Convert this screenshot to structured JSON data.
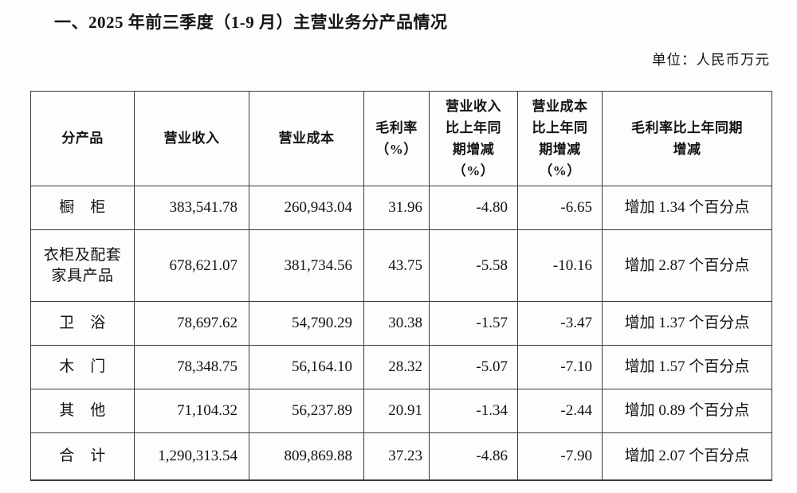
{
  "page": {
    "title": "一、2025 年前三季度（1-9 月）主营业务分产品情况",
    "unit_label": "单位：人民币万元"
  },
  "table": {
    "columns": [
      {
        "key": "product",
        "label": "分产品"
      },
      {
        "key": "revenue",
        "label": "营业收入"
      },
      {
        "key": "cost",
        "label": "营业成本"
      },
      {
        "key": "gross_margin",
        "label": "毛利率\n（%）"
      },
      {
        "key": "revenue_yoy",
        "label": "营业收入\n比上年同\n期增减\n（%）"
      },
      {
        "key": "cost_yoy",
        "label": "营业成本\n比上年同\n期增减\n（%）"
      },
      {
        "key": "margin_yoy",
        "label": "毛利率比上年同期\n增减"
      }
    ],
    "rows": [
      {
        "product": "橱　柜",
        "revenue": "383,541.78",
        "cost": "260,943.04",
        "gross_margin": "31.96",
        "revenue_yoy": "-4.80",
        "cost_yoy": "-6.65",
        "margin_yoy": "增加 1.34 个百分点"
      },
      {
        "product": "衣柜及配套\n家具产品",
        "revenue": "678,621.07",
        "cost": "381,734.56",
        "gross_margin": "43.75",
        "revenue_yoy": "-5.58",
        "cost_yoy": "-10.16",
        "margin_yoy": "增加 2.87 个百分点"
      },
      {
        "product": "卫　浴",
        "revenue": "78,697.62",
        "cost": "54,790.29",
        "gross_margin": "30.38",
        "revenue_yoy": "-1.57",
        "cost_yoy": "-3.47",
        "margin_yoy": "增加 1.37 个百分点"
      },
      {
        "product": "木　门",
        "revenue": "78,348.75",
        "cost": "56,164.10",
        "gross_margin": "28.32",
        "revenue_yoy": "-5.07",
        "cost_yoy": "-7.10",
        "margin_yoy": "增加 1.57 个百分点"
      },
      {
        "product": "其　他",
        "revenue": "71,104.32",
        "cost": "56,237.89",
        "gross_margin": "20.91",
        "revenue_yoy": "-1.34",
        "cost_yoy": "-2.44",
        "margin_yoy": "增加 0.89 个百分点"
      },
      {
        "product": "合　计",
        "revenue": "1,290,313.54",
        "cost": "809,869.88",
        "gross_margin": "37.23",
        "revenue_yoy": "-4.86",
        "cost_yoy": "-7.90",
        "margin_yoy": "增加 2.07 个百分点"
      }
    ]
  },
  "colors": {
    "background": "#fdfdfd",
    "text": "#141414",
    "border": "#3a3a3a"
  }
}
